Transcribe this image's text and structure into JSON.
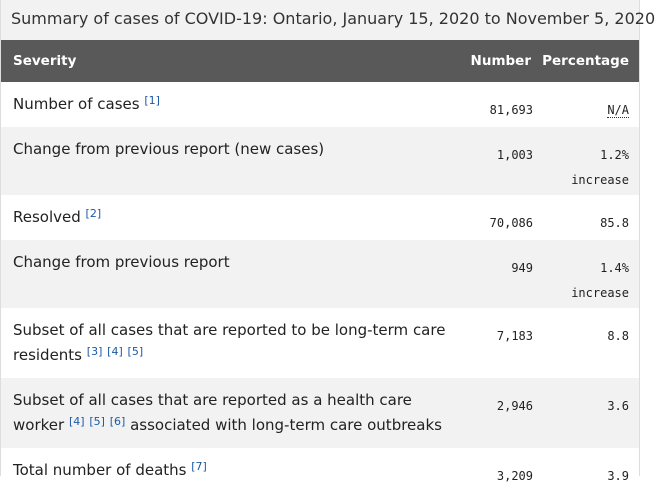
{
  "caption": "Summary of cases of COVID-19: Ontario, January 15, 2020 to November 5, 2020",
  "table": {
    "header": [
      "Severity",
      "Number",
      "Percentage"
    ],
    "rows": [
      {
        "label": "Number of cases",
        "refs": [
          "[1]"
        ],
        "number": "81,693",
        "percentage": "N/A"
      },
      {
        "label": "Change from previous report (new cases)",
        "number": "1,003",
        "percentage": "1.2%",
        "percentage_note": "increase"
      },
      {
        "label": "Resolved",
        "refs": [
          "[2]"
        ],
        "number": "70,086",
        "percentage": "85.8"
      },
      {
        "label": "Change from previous report",
        "number": "949",
        "percentage": "1.4%",
        "percentage_note": "increase"
      },
      {
        "label": "Subset of all cases that are reported to be long-term care residents",
        "refs": [
          "[3]",
          "[4]",
          "[5]"
        ],
        "number": "7,183",
        "percentage": "8.8"
      },
      {
        "label": "Subset of all cases that are reported as a health care worker",
        "refs": [
          "[4]",
          "[5]",
          "[6]"
        ],
        "label_end": "associated with long-term care outbreaks",
        "number": "2,946",
        "percentage": "3.6"
      },
      {
        "label": "Total number of deaths",
        "refs": [
          "[7]"
        ],
        "number": "3,209",
        "percentage": "3.9"
      }
    ]
  }
}
